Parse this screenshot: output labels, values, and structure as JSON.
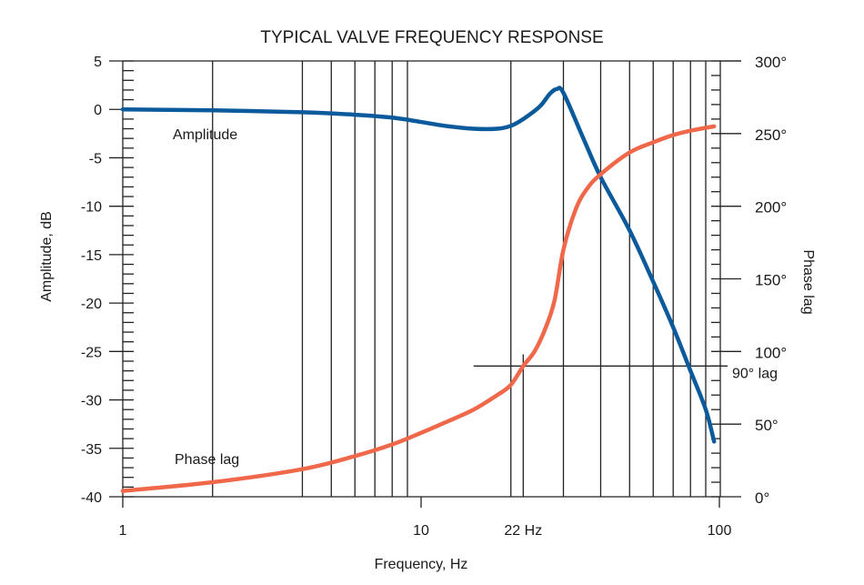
{
  "chart_data": {
    "type": "line",
    "title": "TYPICAL VALVE FREQUENCY RESPONSE",
    "xlabel": "Frequency, Hz",
    "ylabel": "Amplitude, dB",
    "y2label": "Phase lag",
    "x_scale": "log",
    "xlim": [
      1,
      100
    ],
    "ylim": [
      -40,
      5
    ],
    "y2lim": [
      0,
      300
    ],
    "grid": "vertical lines at log frequency positions",
    "x_ticks": [
      {
        "value": 1,
        "label": "1"
      },
      {
        "value": 10,
        "label": "10"
      },
      {
        "value": 22,
        "label": "22 Hz"
      },
      {
        "value": 100,
        "label": "100"
      }
    ],
    "x_grid": [
      2,
      4,
      5,
      6,
      7,
      8,
      9,
      20,
      30,
      40,
      50,
      60,
      70,
      80,
      90
    ],
    "y_ticks": [
      {
        "value": 5,
        "label": "5"
      },
      {
        "value": 0,
        "label": "0"
      },
      {
        "value": -5,
        "label": "-5"
      },
      {
        "value": -10,
        "label": "-10"
      },
      {
        "value": -15,
        "label": "-15"
      },
      {
        "value": -20,
        "label": "-20"
      },
      {
        "value": -25,
        "label": "-25"
      },
      {
        "value": -30,
        "label": "-30"
      },
      {
        "value": -35,
        "label": "-35"
      },
      {
        "value": -40,
        "label": "-40"
      }
    ],
    "y2_ticks": [
      {
        "value": 300,
        "label": "300°"
      },
      {
        "value": 250,
        "label": "250°"
      },
      {
        "value": 200,
        "label": "200°"
      },
      {
        "value": 150,
        "label": "150°"
      },
      {
        "value": 100,
        "label": "100°"
      },
      {
        "value": 50,
        "label": "50°"
      },
      {
        "value": 0,
        "label": "0°"
      }
    ],
    "reference_line": {
      "axis": "y2",
      "value": 90,
      "label": "90° lag",
      "from_x": 15
    },
    "marker_22hz": 22,
    "series": [
      {
        "name": "Amplitude",
        "axis": "y",
        "color": "#0b5a9c",
        "x": [
          1,
          2,
          4,
          6,
          8,
          10,
          12,
          15,
          18,
          20,
          22,
          25,
          27,
          28.5,
          30,
          35,
          40,
          50,
          60,
          70,
          80,
          90,
          96
        ],
        "y": [
          0,
          -0.1,
          -0.3,
          -0.55,
          -0.85,
          -1.3,
          -1.7,
          -2.0,
          -2.0,
          -1.7,
          -1.0,
          0.3,
          1.6,
          2.1,
          1.7,
          -3.0,
          -7.0,
          -12.5,
          -17.8,
          -22.5,
          -27.0,
          -31.0,
          -34.3
        ]
      },
      {
        "name": "Phase lag",
        "axis": "y2",
        "color": "#f0684a",
        "x": [
          1,
          2,
          4,
          6,
          8,
          10,
          12,
          15,
          18,
          20,
          22,
          24,
          26,
          28,
          30,
          33,
          36,
          40,
          50,
          60,
          70,
          80,
          96
        ],
        "y": [
          4,
          10,
          19,
          28,
          36,
          44,
          51,
          60,
          70,
          77,
          90,
          100,
          115,
          135,
          170,
          198,
          212,
          222,
          237,
          244,
          249,
          252,
          255
        ]
      }
    ]
  }
}
